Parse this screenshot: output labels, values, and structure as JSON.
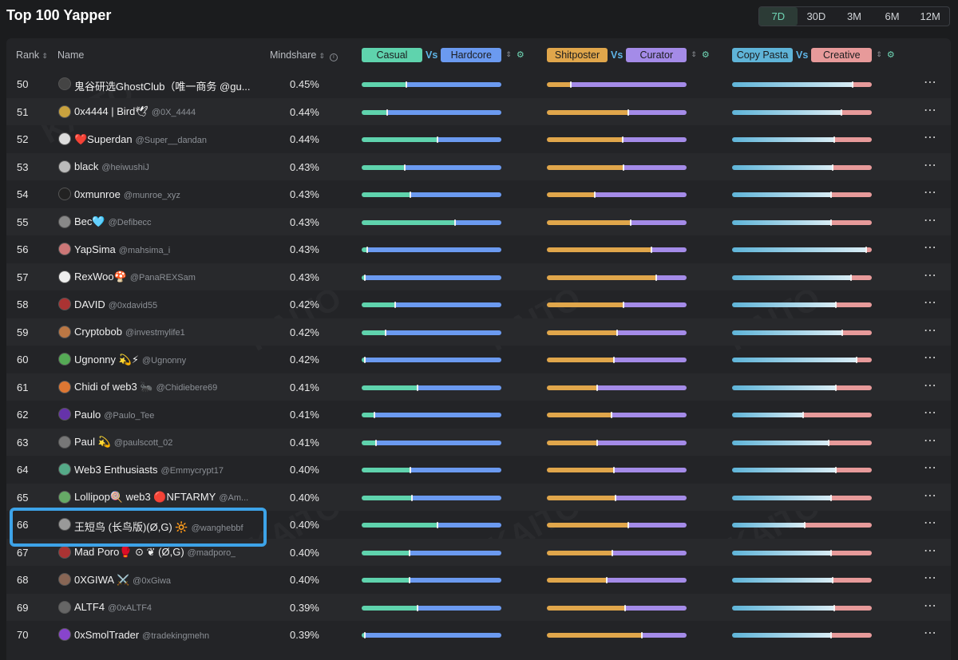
{
  "title": "Top 100 Yapper",
  "periods": [
    "7D",
    "30D",
    "3M",
    "6M",
    "12M"
  ],
  "active_period": "7D",
  "watermark": "KAITO",
  "headers": {
    "rank": "Rank",
    "name": "Name",
    "mindshare": "Mindshare",
    "pair1": {
      "left": "Casual",
      "vs": "Vs",
      "right": "Hardcore"
    },
    "pair2": {
      "left": "Shitposter",
      "vs": "Vs",
      "right": "Curator"
    },
    "pair3": {
      "left": "Copy Pasta",
      "vs": "Vs",
      "right": "Creative"
    }
  },
  "colors": {
    "casual": "#5fd3ad",
    "hardcore": "#6b9af0",
    "shitposter": "#e0a64b",
    "curator": "#a48be8",
    "copypasta": "#5fb4d8",
    "creative": "#e79a9a",
    "highlight": "#3da3e8"
  },
  "rows": [
    {
      "rank": "50",
      "name": "鬼谷研选GhostClub（唯一商务 @gu...",
      "handle": "",
      "mindshare": "0.45%",
      "b1": 0.32,
      "b2": 0.17,
      "b3": 0.86,
      "avatar": "#444"
    },
    {
      "rank": "51",
      "name": "0x4444 | Bird🕊",
      "handle": "@0X_4444",
      "mindshare": "0.44%",
      "b1": 0.18,
      "b2": 0.58,
      "b3": 0.78,
      "avatar": "#c9a23e"
    },
    {
      "rank": "52",
      "name": "❤️Superdan",
      "handle": "@Super__dandan",
      "mindshare": "0.44%",
      "b1": 0.54,
      "b2": 0.54,
      "b3": 0.73,
      "avatar": "#ddd"
    },
    {
      "rank": "53",
      "name": "black",
      "handle": "@heiwushiJ",
      "mindshare": "0.43%",
      "b1": 0.31,
      "b2": 0.55,
      "b3": 0.72,
      "avatar": "#bbb"
    },
    {
      "rank": "54",
      "name": "0xmunroe",
      "handle": "@munroe_xyz",
      "mindshare": "0.43%",
      "b1": 0.35,
      "b2": 0.34,
      "b3": 0.71,
      "avatar": "#222"
    },
    {
      "rank": "55",
      "name": "Bec🩵",
      "handle": "@Defibecc",
      "mindshare": "0.43%",
      "b1": 0.67,
      "b2": 0.6,
      "b3": 0.71,
      "avatar": "#888"
    },
    {
      "rank": "56",
      "name": "YapSima",
      "handle": "@mahsima_i",
      "mindshare": "0.43%",
      "b1": 0.04,
      "b2": 0.75,
      "b3": 0.96,
      "avatar": "#c77"
    },
    {
      "rank": "57",
      "name": "RexWoo🍄",
      "handle": "@PanaREXSam",
      "mindshare": "0.43%",
      "b1": 0.02,
      "b2": 0.78,
      "b3": 0.85,
      "avatar": "#eee"
    },
    {
      "rank": "58",
      "name": "DAVID",
      "handle": "@0xdavid55",
      "mindshare": "0.42%",
      "b1": 0.24,
      "b2": 0.55,
      "b3": 0.74,
      "avatar": "#a33"
    },
    {
      "rank": "59",
      "name": "Cryptobob",
      "handle": "@investmylife1",
      "mindshare": "0.42%",
      "b1": 0.17,
      "b2": 0.5,
      "b3": 0.79,
      "avatar": "#b74"
    },
    {
      "rank": "60",
      "name": "Ugnonny 💫⚡",
      "handle": "@Ugnonny",
      "mindshare": "0.42%",
      "b1": 0.02,
      "b2": 0.48,
      "b3": 0.89,
      "avatar": "#5a5"
    },
    {
      "rank": "61",
      "name": "Chidi of web3 🐜",
      "handle": "@Chidiebere69",
      "mindshare": "0.41%",
      "b1": 0.4,
      "b2": 0.36,
      "b3": 0.74,
      "avatar": "#d73"
    },
    {
      "rank": "62",
      "name": "Paulo",
      "handle": "@Paulo_Tee",
      "mindshare": "0.41%",
      "b1": 0.09,
      "b2": 0.46,
      "b3": 0.51,
      "avatar": "#63a"
    },
    {
      "rank": "63",
      "name": "Paul 💫",
      "handle": "@paulscott_02",
      "mindshare": "0.41%",
      "b1": 0.1,
      "b2": 0.36,
      "b3": 0.69,
      "avatar": "#777"
    },
    {
      "rank": "64",
      "name": "Web3 Enthusiasts",
      "handle": "@Emmycrypt17",
      "mindshare": "0.40%",
      "b1": 0.35,
      "b2": 0.48,
      "b3": 0.74,
      "avatar": "#5a8"
    },
    {
      "rank": "65",
      "name": "Lollipop🍭 web3 🔴NFTARMY",
      "handle": "@Am...",
      "mindshare": "0.40%",
      "b1": 0.36,
      "b2": 0.49,
      "b3": 0.71,
      "avatar": "#6a6"
    },
    {
      "rank": "66",
      "name": "王短鸟 (长鸟版)(Ø,G) 🔆",
      "handle": "@wanghebbf",
      "mindshare": "0.40%",
      "b1": 0.54,
      "b2": 0.58,
      "b3": 0.52,
      "avatar": "#999"
    },
    {
      "rank": "67",
      "name": "Mad Poro🥊 ⊙ ❦ (Ø,G)",
      "handle": "@madporo_",
      "mindshare": "0.40%",
      "b1": 0.34,
      "b2": 0.47,
      "b3": 0.71,
      "avatar": "#a33"
    },
    {
      "rank": "68",
      "name": "0XGIWA ⚔️",
      "handle": "@0xGiwa",
      "mindshare": "0.40%",
      "b1": 0.34,
      "b2": 0.43,
      "b3": 0.72,
      "avatar": "#865"
    },
    {
      "rank": "69",
      "name": "ALTF4",
      "handle": "@0xALTF4",
      "mindshare": "0.39%",
      "b1": 0.4,
      "b2": 0.56,
      "b3": 0.73,
      "avatar": "#666"
    },
    {
      "rank": "70",
      "name": "0xSmolTrader",
      "handle": "@tradekingmehn",
      "mindshare": "0.39%",
      "b1": 0.02,
      "b2": 0.68,
      "b3": 0.71,
      "avatar": "#84c"
    }
  ]
}
